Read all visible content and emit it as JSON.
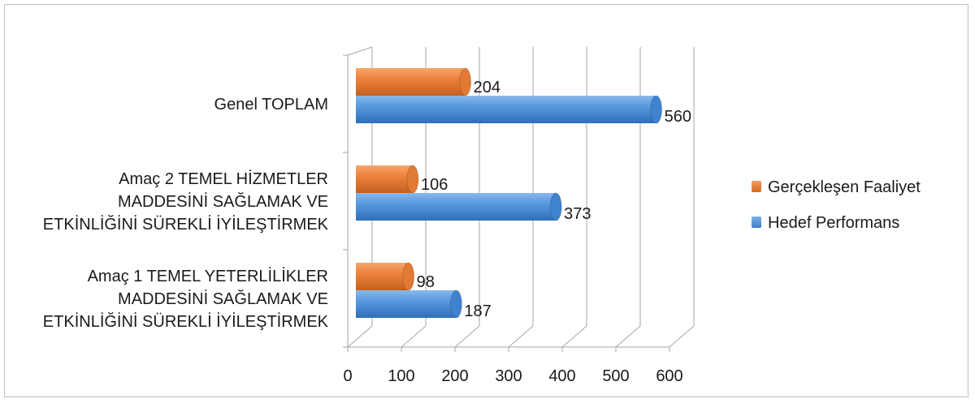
{
  "chart_data": {
    "type": "bar",
    "orientation": "horizontal",
    "style": "3d-cylinder",
    "categories": [
      [
        "Amaç 1 TEMEL YETERLİLİKLER",
        "MADDESİNİ SAĞLAMAK VE",
        "ETKİNLİĞİNİ SÜREKLİ İYİLEŞTİRMEK"
      ],
      [
        "Amaç 2 TEMEL HİZMETLER",
        "MADDESİNİ SAĞLAMAK VE",
        "ETKİNLİĞİNİ SÜREKLİ İYİLEŞTİRMEK"
      ],
      [
        "Genel TOPLAM"
      ]
    ],
    "series": [
      {
        "name": "Hedef Performans",
        "values": [
          187,
          373,
          560
        ],
        "color": "#4a8fd8"
      },
      {
        "name": "Gerçekleşen Faaliyet",
        "values": [
          98,
          106,
          204
        ],
        "color": "#ed7d31"
      }
    ],
    "legend_order": [
      "Gerçekleşen Faaliyet",
      "Hedef Performans"
    ],
    "xlim": [
      0,
      600
    ],
    "xticks": [
      "0",
      "100",
      "200",
      "300",
      "400",
      "500",
      "600"
    ],
    "grid": true,
    "legend": "right",
    "data_labels": true
  }
}
